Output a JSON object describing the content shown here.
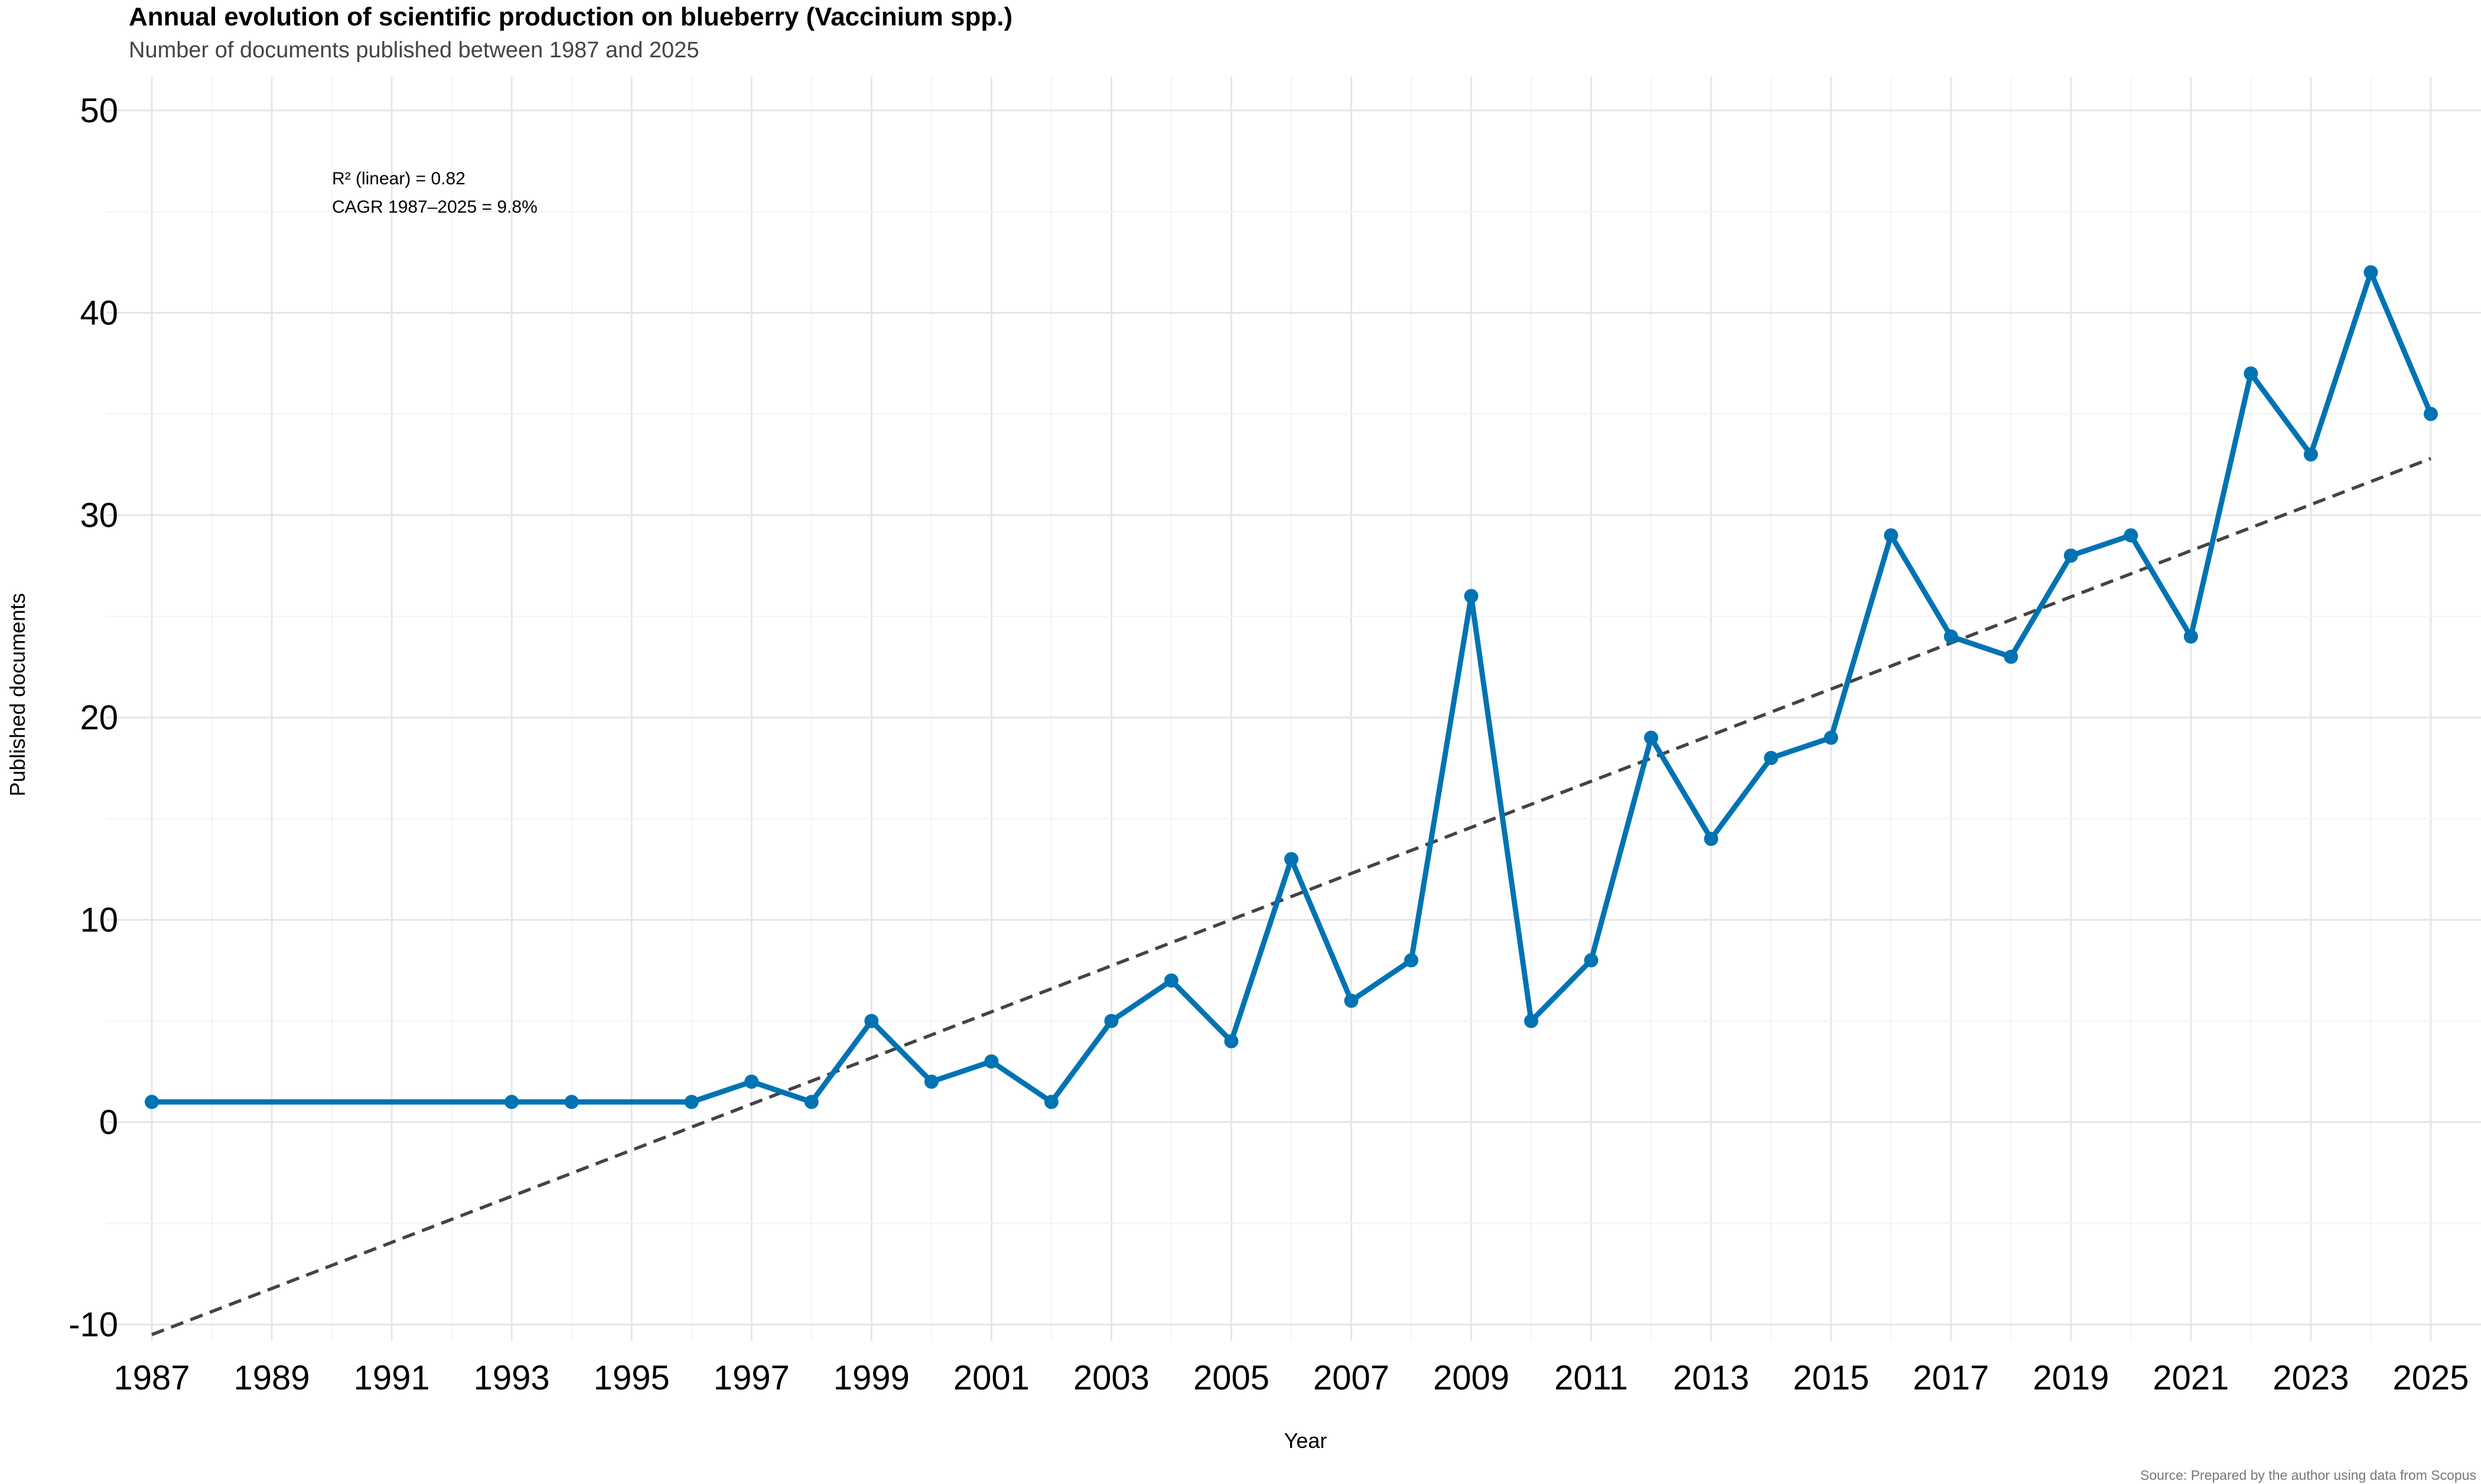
{
  "chart_data": {
    "type": "line",
    "title": "Annual evolution of scientific production on blueberry (Vaccinium spp.)",
    "subtitle": "Number of documents published between 1987 and 2025",
    "xlabel": "Year",
    "ylabel": "Published documents",
    "source": "Source: Prepared by the author using data from Scopus",
    "annotations": [
      "R² (linear) = 0.82",
      "CAGR 1987–2025 = 9.8%"
    ],
    "xlim": [
      1987,
      2025
    ],
    "ylim": [
      -10,
      50
    ],
    "x_ticks": [
      1987,
      1989,
      1991,
      1993,
      1995,
      1997,
      1999,
      2001,
      2003,
      2005,
      2007,
      2009,
      2011,
      2013,
      2015,
      2017,
      2019,
      2021,
      2023,
      2025
    ],
    "y_ticks": [
      -10,
      0,
      10,
      20,
      30,
      40,
      50
    ],
    "grid": true,
    "series": [
      {
        "name": "Published documents",
        "color": "#0073b3",
        "x": [
          1987,
          1993,
          1994,
          1996,
          1997,
          1998,
          1999,
          2000,
          2001,
          2002,
          2003,
          2004,
          2005,
          2006,
          2007,
          2008,
          2009,
          2010,
          2011,
          2012,
          2013,
          2014,
          2015,
          2016,
          2017,
          2018,
          2019,
          2020,
          2021,
          2022,
          2023,
          2024,
          2025
        ],
        "values": [
          1,
          1,
          1,
          1,
          2,
          1,
          5,
          2,
          3,
          1,
          5,
          7,
          4,
          13,
          6,
          8,
          26,
          5,
          8,
          19,
          14,
          18,
          19,
          29,
          24,
          23,
          28,
          29,
          24,
          37,
          33,
          42,
          35
        ]
      }
    ],
    "trendline": {
      "name": "Linear trend",
      "style": "dashed",
      "color": "#444444",
      "x": [
        1987,
        2025
      ],
      "values": [
        -10.5,
        32.8
      ]
    }
  }
}
